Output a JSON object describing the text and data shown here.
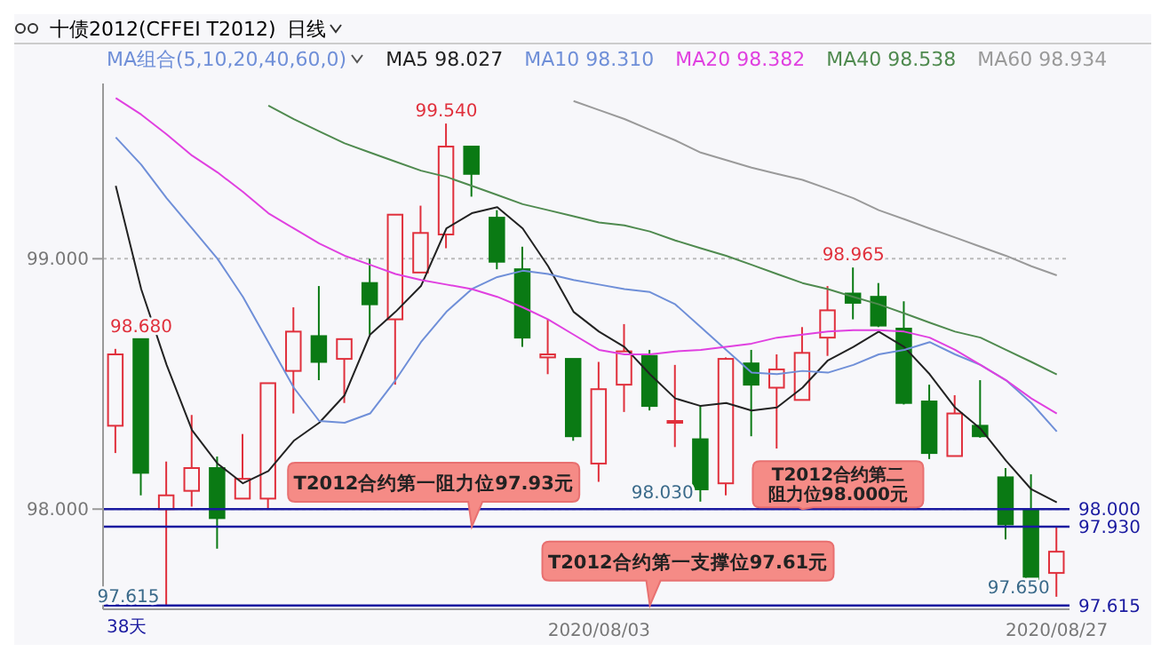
{
  "chart_data": {
    "type": "candlestick",
    "title": "十债2012(CFFEI T2012)",
    "subtitle": "日线",
    "legend_title": "MA组合(5,10,20,40,60,0)",
    "legend": "top",
    "grid": "y",
    "categories": [
      null,
      null,
      null,
      null,
      null,
      null,
      null,
      null,
      null,
      null,
      null,
      null,
      null,
      null,
      null,
      null,
      null,
      null,
      null,
      "2020/08/03",
      null,
      null,
      null,
      null,
      null,
      null,
      null,
      null,
      null,
      null,
      null,
      null,
      null,
      null,
      null,
      null,
      null,
      "2020/08/27"
    ],
    "ohlc": [
      [
        98.333,
        98.64,
        98.224,
        98.618
      ],
      [
        98.679,
        98.68,
        98.055,
        98.145
      ],
      [
        98.0,
        98.19,
        97.615,
        98.055
      ],
      [
        98.073,
        98.376,
        98.01,
        98.164
      ],
      [
        98.164,
        98.21,
        97.842,
        97.964
      ],
      [
        98.042,
        98.3,
        98.042,
        98.121
      ],
      [
        98.042,
        98.503,
        98.0,
        98.503
      ],
      [
        98.552,
        98.806,
        98.382,
        98.709
      ],
      [
        98.691,
        98.891,
        98.515,
        98.588
      ],
      [
        98.6,
        98.679,
        98.424,
        98.679
      ],
      [
        98.903,
        99.0,
        98.697,
        98.818
      ],
      [
        98.758,
        99.176,
        98.497,
        99.176
      ],
      [
        98.945,
        99.212,
        98.945,
        99.103
      ],
      [
        99.097,
        99.54,
        99.042,
        99.448
      ],
      [
        99.448,
        99.448,
        99.248,
        99.339
      ],
      [
        99.164,
        99.194,
        98.958,
        98.988
      ],
      [
        98.958,
        99.048,
        98.648,
        98.685
      ],
      [
        98.606,
        98.758,
        98.539,
        98.618
      ],
      [
        98.6,
        98.6,
        98.273,
        98.291
      ],
      [
        98.182,
        98.588,
        98.109,
        98.479
      ],
      [
        98.497,
        98.739,
        98.388,
        98.63
      ],
      [
        98.612,
        98.636,
        98.394,
        98.412
      ],
      [
        98.352,
        98.576,
        98.248,
        98.352
      ],
      [
        98.279,
        98.412,
        98.03,
        98.079
      ],
      [
        98.103,
        98.606,
        98.055,
        98.6
      ],
      [
        98.582,
        98.636,
        98.291,
        98.497
      ],
      [
        98.485,
        98.618,
        98.242,
        98.558
      ],
      [
        98.436,
        98.727,
        98.436,
        98.624
      ],
      [
        98.685,
        98.891,
        98.612,
        98.794
      ],
      [
        98.861,
        98.965,
        98.758,
        98.824
      ],
      [
        98.848,
        98.903,
        98.727,
        98.733
      ],
      [
        98.721,
        98.83,
        98.418,
        98.424
      ],
      [
        98.43,
        98.497,
        98.2,
        98.224
      ],
      [
        98.212,
        98.455,
        98.212,
        98.382
      ],
      [
        98.333,
        98.515,
        98.285,
        98.291
      ],
      [
        98.127,
        98.164,
        97.879,
        97.939
      ],
      [
        97.994,
        98.139,
        97.709,
        97.709
      ],
      [
        97.745,
        97.927,
        97.65,
        97.83
      ]
    ],
    "colors": [
      "#e0303c",
      "#0a7a14",
      "#e0303c",
      "#e0303c",
      "#0a7a14",
      "#e0303c",
      "#e0303c",
      "#e0303c",
      "#0a7a14",
      "#e0303c",
      "#0a7a14",
      "#e0303c",
      "#e0303c",
      "#e0303c",
      "#0a7a14",
      "#0a7a14",
      "#0a7a14",
      "#e0303c",
      "#0a7a14",
      "#e0303c",
      "#e0303c",
      "#0a7a14",
      "#e0303c",
      "#0a7a14",
      "#e0303c",
      "#0a7a14",
      "#e0303c",
      "#e0303c",
      "#e0303c",
      "#0a7a14",
      "#0a7a14",
      "#0a7a14",
      "#0a7a14",
      "#e0303c",
      "#0a7a14",
      "#0a7a14",
      "#0a7a14",
      "#e0303c"
    ],
    "series": [
      {
        "name": "MA5 98.027",
        "type": "line",
        "color": "#222222",
        "values": [
          99.291,
          98.879,
          98.576,
          98.315,
          98.182,
          98.103,
          98.152,
          98.273,
          98.345,
          98.455,
          98.697,
          98.788,
          98.891,
          99.121,
          99.182,
          99.206,
          99.121,
          98.97,
          98.788,
          98.709,
          98.648,
          98.539,
          98.442,
          98.412,
          98.424,
          98.394,
          98.406,
          98.485,
          98.594,
          98.648,
          98.709,
          98.648,
          98.539,
          98.406,
          98.321,
          98.194,
          98.079,
          98.027
        ]
      },
      {
        "name": "MA10 98.310",
        "type": "line",
        "color": "#6f8fd8",
        "values": [
          99.485,
          99.376,
          99.242,
          99.121,
          99.0,
          98.848,
          98.667,
          98.485,
          98.352,
          98.345,
          98.382,
          98.515,
          98.667,
          98.788,
          98.879,
          98.927,
          98.952,
          98.939,
          98.915,
          98.897,
          98.879,
          98.867,
          98.818,
          98.727,
          98.636,
          98.545,
          98.539,
          98.552,
          98.545,
          98.576,
          98.618,
          98.636,
          98.667,
          98.618,
          98.576,
          98.515,
          98.424,
          98.31
        ]
      },
      {
        "name": "MA20 98.382",
        "type": "line",
        "color": "#e040e0",
        "values": [
          99.642,
          99.576,
          99.497,
          99.412,
          99.345,
          99.267,
          99.182,
          99.121,
          99.061,
          99.012,
          98.976,
          98.939,
          98.915,
          98.897,
          98.879,
          98.848,
          98.806,
          98.758,
          98.697,
          98.636,
          98.618,
          98.618,
          98.63,
          98.636,
          98.648,
          98.661,
          98.685,
          98.697,
          98.709,
          98.715,
          98.715,
          98.709,
          98.685,
          98.636,
          98.576,
          98.515,
          98.442,
          98.382
        ]
      },
      {
        "name": "MA40 98.538",
        "type": "line",
        "color": "#4f8a4f",
        "values": [
          null,
          null,
          null,
          null,
          null,
          null,
          99.612,
          99.558,
          99.509,
          99.461,
          99.424,
          99.388,
          99.352,
          99.327,
          99.291,
          99.255,
          99.218,
          99.194,
          99.17,
          99.145,
          99.133,
          99.109,
          99.073,
          99.042,
          99.012,
          98.976,
          98.939,
          98.903,
          98.879,
          98.848,
          98.818,
          98.782,
          98.745,
          98.709,
          98.685,
          98.636,
          98.588,
          98.538
        ]
      },
      {
        "name": "MA60 98.934",
        "type": "line",
        "color": "#9a9a9a",
        "values": [
          null,
          null,
          null,
          null,
          null,
          null,
          null,
          null,
          null,
          null,
          null,
          null,
          null,
          null,
          null,
          null,
          null,
          null,
          99.63,
          99.594,
          99.558,
          99.515,
          99.473,
          99.424,
          99.394,
          99.364,
          99.339,
          99.315,
          99.279,
          99.242,
          99.194,
          99.158,
          99.121,
          99.085,
          99.048,
          99.012,
          98.97,
          98.934
        ]
      }
    ],
    "ylim": [
      97.6,
      99.7
    ],
    "yticks": [
      {
        "value": 99,
        "label": "99.000"
      },
      {
        "value": 98,
        "label": "98.000"
      }
    ],
    "ref_lines": [
      {
        "axis": "y",
        "value": 98.0,
        "label": "98.000",
        "color": "#1a1aa0"
      },
      {
        "axis": "y",
        "value": 97.93,
        "label": "97.930",
        "color": "#1a1aa0"
      },
      {
        "axis": "y",
        "value": 97.615,
        "label": "97.615",
        "color": "#1a1aa0"
      }
    ],
    "annotations": [
      {
        "text": "99.540",
        "y": 99.54
      },
      {
        "text": "98.680",
        "y": 98.68
      },
      {
        "text": "98.965",
        "y": 98.965
      },
      {
        "text": "98.030",
        "y": 98.03
      },
      {
        "text": "97.615",
        "y": 97.615
      },
      {
        "text": "97.650",
        "y": 97.65
      },
      {
        "text": "T2012合约第一阻力位97.93元",
        "y": 97.93
      },
      {
        "text": "T2012合约第二阻力位98.000元",
        "y": 98.0
      },
      {
        "text": "T2012合约第一支撑位97.61元",
        "y": 97.615
      },
      "38天"
    ]
  }
}
